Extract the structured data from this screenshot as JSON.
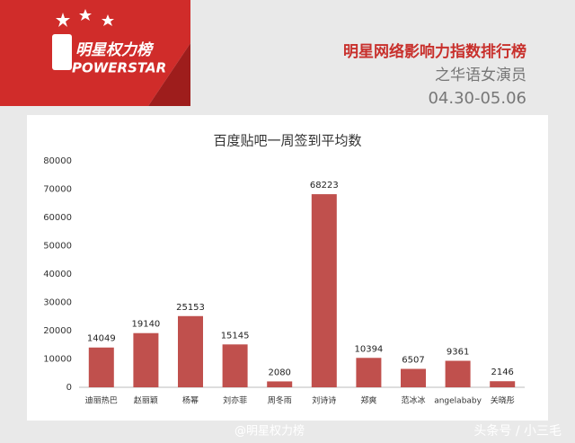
{
  "header": {
    "brand": "明星权力榜",
    "brand_en": "POWERSTAR",
    "title": "明星网络影响力指数排行榜",
    "subtitle": "之华语女演员",
    "period": "04.30-05.06"
  },
  "chart_data": {
    "type": "bar",
    "title": "百度贴吧一周签到平均数",
    "categories": [
      "迪丽热巴",
      "赵丽颖",
      "杨幂",
      "刘亦菲",
      "周冬雨",
      "刘诗诗",
      "郑爽",
      "范冰冰",
      "angelababy",
      "关晓彤"
    ],
    "values": [
      14049,
      19140,
      25153,
      15145,
      2080,
      68223,
      10394,
      6507,
      9361,
      2146
    ],
    "color": "#c0504d",
    "ylim": [
      0,
      80000
    ],
    "yticks": [
      0,
      10000,
      20000,
      30000,
      40000,
      50000,
      60000,
      70000,
      80000
    ],
    "grid": false
  },
  "footer": {
    "weibo": "@明星权力榜",
    "toutiao": "头条号 / 小三毛"
  }
}
